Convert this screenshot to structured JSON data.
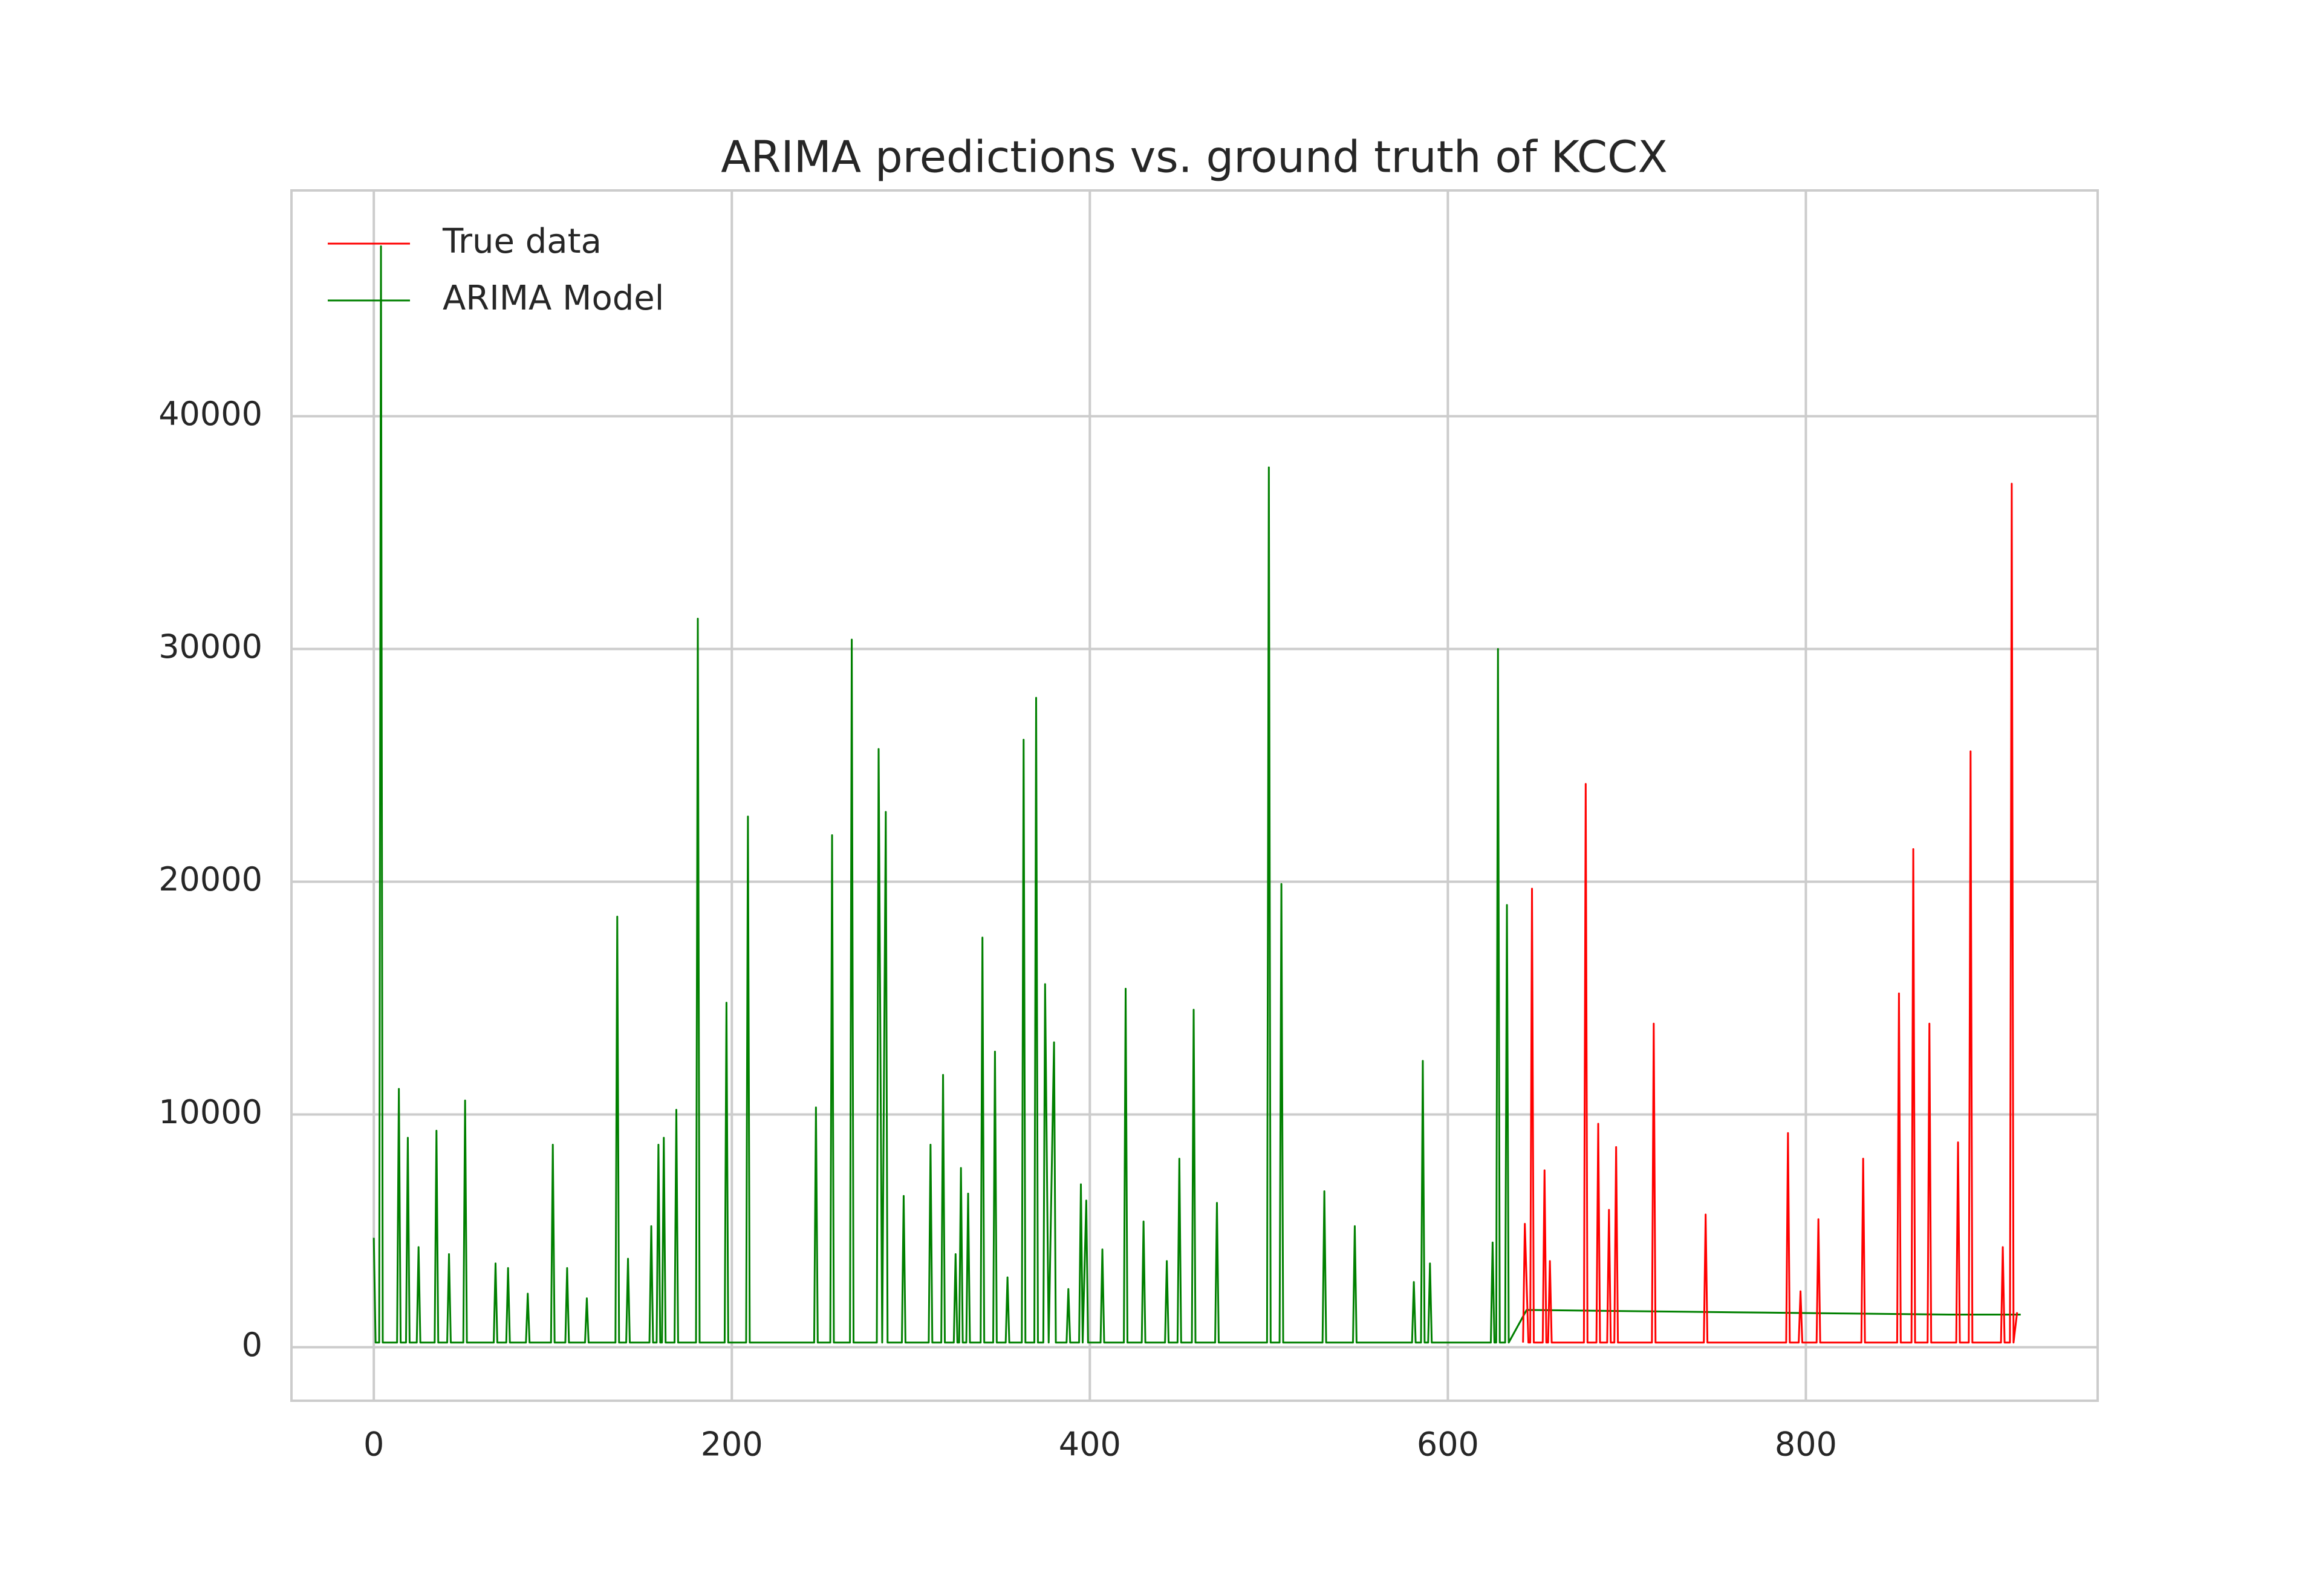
{
  "chart_data": {
    "type": "line",
    "title": "ARIMA predictions vs. ground truth of KCCX",
    "xlim": [
      -46,
      963
    ],
    "ylim": [
      -2300,
      49700
    ],
    "xticks": [
      0,
      200,
      400,
      600,
      800
    ],
    "yticks": [
      0,
      10000,
      20000,
      30000,
      40000
    ],
    "grid": true,
    "legend": "upper-left",
    "series": [
      {
        "name": "True data",
        "color": "#ff0000",
        "x": [
          642,
          643,
          645,
          646,
          647,
          648,
          653,
          654,
          655,
          656,
          657,
          658,
          676,
          677,
          678,
          683,
          684,
          685,
          689,
          690,
          691,
          693,
          694,
          695,
          714,
          715,
          716,
          743,
          744,
          745,
          789,
          790,
          791,
          796,
          797,
          798,
          806,
          807,
          808,
          831,
          832,
          833,
          851,
          852,
          853,
          859,
          860,
          861,
          868,
          869,
          870,
          884,
          885,
          886,
          891,
          892,
          893,
          909,
          910,
          911,
          914,
          915,
          916,
          918
        ],
        "values": [
          200,
          5300,
          200,
          200,
          19700,
          200,
          200,
          7600,
          200,
          200,
          3700,
          200,
          200,
          24200,
          200,
          200,
          9600,
          200,
          200,
          5900,
          200,
          200,
          8600,
          200,
          200,
          13900,
          200,
          200,
          5700,
          200,
          200,
          9200,
          200,
          200,
          2400,
          200,
          200,
          5500,
          200,
          200,
          8100,
          200,
          200,
          15200,
          200,
          200,
          21400,
          200,
          200,
          13900,
          200,
          200,
          8800,
          200,
          200,
          25600,
          200,
          200,
          4300,
          200,
          200,
          37100,
          200,
          1500
        ]
      },
      {
        "name": "ARIMA Model",
        "color": "#008000",
        "x": [
          0,
          1,
          3,
          4,
          5,
          13,
          14,
          15,
          18,
          19,
          20,
          24,
          25,
          26,
          34,
          35,
          36,
          41,
          42,
          43,
          50,
          51,
          52,
          67,
          68,
          69,
          74,
          75,
          76,
          85,
          86,
          87,
          99,
          100,
          101,
          107,
          108,
          109,
          118,
          119,
          120,
          135,
          136,
          137,
          141,
          142,
          143,
          154,
          155,
          156,
          158,
          159,
          160,
          161,
          162,
          163,
          168,
          169,
          170,
          180,
          181,
          182,
          196,
          197,
          198,
          208,
          209,
          210,
          246,
          247,
          248,
          255,
          256,
          257,
          266,
          267,
          268,
          281,
          282,
          284,
          286,
          287,
          295,
          296,
          297,
          310,
          311,
          312,
          317,
          318,
          319,
          324,
          325,
          326,
          327,
          328,
          329,
          331,
          332,
          333,
          339,
          340,
          341,
          346,
          347,
          348,
          353,
          354,
          355,
          362,
          363,
          364,
          369,
          370,
          371,
          374,
          375,
          377,
          380,
          381,
          387,
          388,
          389,
          394,
          395,
          396,
          398,
          399,
          406,
          407,
          408,
          419,
          420,
          421,
          429,
          430,
          431,
          442,
          443,
          444,
          449,
          450,
          451,
          457,
          458,
          459,
          470,
          471,
          472,
          499,
          500,
          501,
          506,
          507,
          508,
          530,
          531,
          532,
          547,
          548,
          549,
          580,
          581,
          582,
          585,
          586,
          587,
          589,
          590,
          591,
          624,
          625,
          626,
          627,
          628,
          629,
          632,
          633,
          634,
          644,
          700,
          760,
          820,
          880,
          920
        ],
        "values": [
          4700,
          200,
          200,
          47300,
          200,
          200,
          11100,
          200,
          200,
          9000,
          200,
          200,
          4300,
          200,
          200,
          9300,
          200,
          200,
          4000,
          200,
          200,
          10600,
          200,
          200,
          3600,
          200,
          200,
          3400,
          200,
          200,
          2300,
          200,
          200,
          8700,
          200,
          200,
          3400,
          200,
          200,
          2100,
          200,
          200,
          18500,
          200,
          200,
          3800,
          200,
          200,
          5200,
          200,
          200,
          8700,
          200,
          200,
          9000,
          200,
          200,
          10200,
          200,
          200,
          31300,
          200,
          200,
          14800,
          200,
          200,
          22800,
          200,
          200,
          10300,
          200,
          200,
          22000,
          200,
          200,
          30400,
          200,
          200,
          25700,
          200,
          23000,
          200,
          200,
          6500,
          200,
          200,
          8700,
          200,
          200,
          11700,
          200,
          200,
          4000,
          200,
          200,
          7700,
          200,
          200,
          6600,
          200,
          200,
          17600,
          200,
          200,
          12700,
          200,
          200,
          3000,
          200,
          200,
          26100,
          200,
          200,
          27900,
          200,
          200,
          15600,
          200,
          13100,
          200,
          200,
          2500,
          200,
          200,
          7000,
          200,
          6300,
          200,
          200,
          4200,
          200,
          200,
          15400,
          200,
          200,
          5400,
          200,
          200,
          3700,
          200,
          200,
          8100,
          200,
          200,
          14500,
          200,
          200,
          6200,
          200,
          200,
          37800,
          200,
          200,
          19900,
          200,
          200,
          6700,
          200,
          200,
          5200,
          200,
          200,
          2800,
          200,
          200,
          12300,
          200,
          200,
          3600,
          200,
          200,
          4500,
          200,
          200,
          30000,
          200,
          200,
          19000,
          200,
          1600,
          1550,
          1500,
          1450,
          1400,
          1400
        ]
      }
    ]
  }
}
